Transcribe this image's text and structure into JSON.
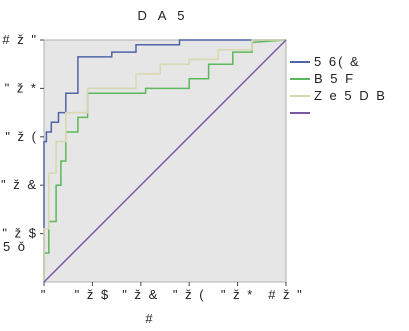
{
  "chart_data": {
    "type": "line",
    "title": "D A 5",
    "xlabel": "#",
    "ylabel": "5 ǒ",
    "xlim": [
      0,
      1
    ],
    "ylim": [
      0,
      1
    ],
    "x_ticks": [
      {
        "value": 0.0,
        "label": "\""
      },
      {
        "value": 0.2,
        "label": "\" ž $"
      },
      {
        "value": 0.4,
        "label": "\" ž &"
      },
      {
        "value": 0.6,
        "label": "\" ž ("
      },
      {
        "value": 0.8,
        "label": "\" ž *"
      },
      {
        "value": 1.0,
        "label": "# ž \""
      }
    ],
    "y_ticks": [
      {
        "value": 0.2,
        "label": "\" ž $"
      },
      {
        "value": 0.4,
        "label": "\" ž &"
      },
      {
        "value": 0.6,
        "label": "\" ž ("
      },
      {
        "value": 0.8,
        "label": "\" ž *"
      },
      {
        "value": 1.0,
        "label": "# ž \""
      }
    ],
    "legend_position": "right",
    "background": "#e6e6e6",
    "series": [
      {
        "name": "5 6( &",
        "color": "#4f63a8",
        "x": [
          0,
          0,
          0.01,
          0.01,
          0.03,
          0.03,
          0.06,
          0.06,
          0.09,
          0.09,
          0.14,
          0.14,
          0.28,
          0.28,
          0.38,
          0.38,
          0.56,
          0.56,
          0.86,
          0.86,
          1.0
        ],
        "y": [
          0,
          0.58,
          0.58,
          0.62,
          0.62,
          0.66,
          0.66,
          0.7,
          0.7,
          0.78,
          0.78,
          0.93,
          0.93,
          0.95,
          0.95,
          0.98,
          0.98,
          1.0,
          1.0,
          1.0,
          1.0
        ]
      },
      {
        "name": "B 5 F",
        "color": "#5cb85c",
        "x": [
          0,
          0,
          0.02,
          0.02,
          0.05,
          0.05,
          0.07,
          0.07,
          0.09,
          0.09,
          0.14,
          0.14,
          0.18,
          0.18,
          0.42,
          0.42,
          0.6,
          0.6,
          0.68,
          0.68,
          0.78,
          0.78,
          0.86,
          0.86,
          1.0
        ],
        "y": [
          0,
          0.12,
          0.12,
          0.25,
          0.25,
          0.4,
          0.4,
          0.5,
          0.5,
          0.62,
          0.62,
          0.68,
          0.68,
          0.78,
          0.78,
          0.8,
          0.8,
          0.84,
          0.84,
          0.9,
          0.9,
          0.95,
          0.95,
          0.99,
          1.0
        ]
      },
      {
        "name": "Z e   5 D B",
        "color": "#d8d8b0",
        "x": [
          0,
          0,
          0.02,
          0.02,
          0.05,
          0.05,
          0.09,
          0.09,
          0.18,
          0.18,
          0.38,
          0.38,
          0.48,
          0.48,
          0.6,
          0.6,
          0.72,
          0.72,
          0.86,
          0.86,
          1.0
        ],
        "y": [
          0,
          0.22,
          0.22,
          0.45,
          0.45,
          0.58,
          0.58,
          0.7,
          0.7,
          0.8,
          0.8,
          0.86,
          0.86,
          0.9,
          0.9,
          0.92,
          0.92,
          0.96,
          0.96,
          1.0,
          1.0
        ]
      },
      {
        "name": "",
        "color": "#7a5aa8",
        "x": [
          0,
          1
        ],
        "y": [
          0,
          1
        ]
      }
    ]
  }
}
